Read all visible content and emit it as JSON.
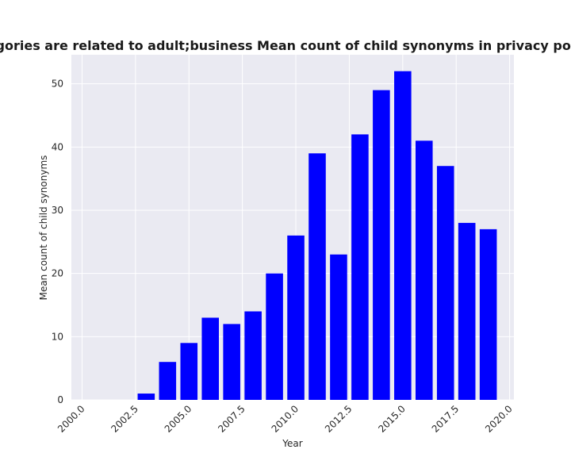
{
  "chart_data": {
    "type": "bar",
    "title": "When categories are related to adult;business Mean count of child synonyms in privacy policies by year",
    "xlabel": "Year",
    "ylabel": "Mean count of child synonyms",
    "x": [
      2003,
      2004,
      2005,
      2006,
      2007,
      2008,
      2009,
      2010,
      2011,
      2012,
      2013,
      2014,
      2015,
      2016,
      2017,
      2018,
      2019
    ],
    "values": [
      1,
      6,
      9,
      13,
      12,
      14,
      20,
      26,
      39,
      23,
      42,
      49,
      52,
      41,
      37,
      28,
      27
    ],
    "xlim": [
      1999.5,
      2020.2
    ],
    "ylim": [
      0,
      54.6
    ],
    "xticks": [
      2000.0,
      2002.5,
      2005.0,
      2007.5,
      2010.0,
      2012.5,
      2015.0,
      2017.5,
      2020.0
    ],
    "xtick_labels": [
      "2000.0",
      "2002.5",
      "2005.0",
      "2007.5",
      "2010.0",
      "2012.5",
      "2015.0",
      "2017.5",
      "2020.0"
    ],
    "yticks": [
      0,
      10,
      20,
      30,
      40,
      50
    ],
    "ytick_labels": [
      "0",
      "10",
      "20",
      "30",
      "40",
      "50"
    ],
    "bar_color": "#0000ff",
    "background_color": "#eaeaf2",
    "grid_color": "#ffffff",
    "grid": true,
    "legend": "none"
  }
}
